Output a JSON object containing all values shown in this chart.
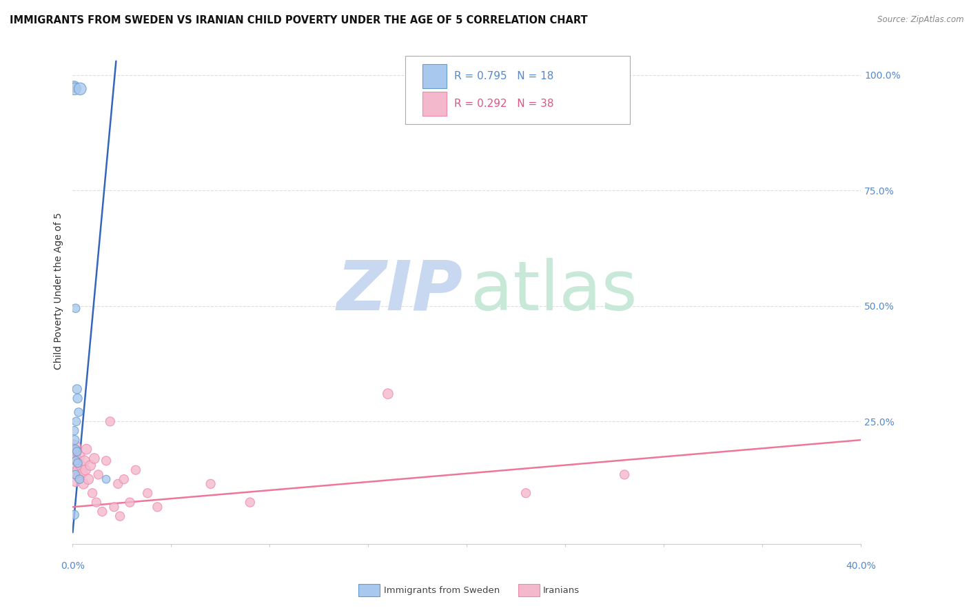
{
  "title": "IMMIGRANTS FROM SWEDEN VS IRANIAN CHILD POVERTY UNDER THE AGE OF 5 CORRELATION CHART",
  "source": "Source: ZipAtlas.com",
  "ylabel": "Child Poverty Under the Age of 5",
  "ytick_labels": [
    "100.0%",
    "75.0%",
    "50.0%",
    "25.0%"
  ],
  "ytick_values": [
    1.0,
    0.75,
    0.5,
    0.25
  ],
  "xmin": 0.0,
  "xmax": 0.4,
  "ymin": -0.015,
  "ymax": 1.08,
  "sweden_x": [
    0.0008,
    0.001,
    0.0038,
    0.0015,
    0.0022,
    0.0025,
    0.003,
    0.0018,
    0.0008,
    0.001,
    0.0014,
    0.0022,
    0.0016,
    0.0026,
    0.0014,
    0.0035,
    0.0008,
    0.017
  ],
  "sweden_y": [
    0.975,
    0.97,
    0.97,
    0.495,
    0.32,
    0.3,
    0.27,
    0.25,
    0.23,
    0.21,
    0.19,
    0.185,
    0.165,
    0.16,
    0.135,
    0.125,
    0.048,
    0.125
  ],
  "sweden_sizes": [
    130,
    160,
    160,
    80,
    90,
    90,
    80,
    80,
    80,
    90,
    80,
    80,
    80,
    80,
    80,
    80,
    90,
    70
  ],
  "iran_x": [
    0.0005,
    0.0008,
    0.001,
    0.0012,
    0.0015,
    0.0018,
    0.0022,
    0.0025,
    0.003,
    0.0035,
    0.004,
    0.005,
    0.0055,
    0.006,
    0.0065,
    0.007,
    0.008,
    0.009,
    0.01,
    0.011,
    0.012,
    0.013,
    0.015,
    0.017,
    0.019,
    0.021,
    0.023,
    0.024,
    0.026,
    0.029,
    0.032,
    0.038,
    0.043,
    0.07,
    0.09,
    0.16,
    0.23,
    0.28
  ],
  "iran_y": [
    0.195,
    0.175,
    0.16,
    0.14,
    0.12,
    0.185,
    0.165,
    0.145,
    0.13,
    0.175,
    0.155,
    0.138,
    0.115,
    0.165,
    0.145,
    0.19,
    0.125,
    0.155,
    0.095,
    0.17,
    0.075,
    0.135,
    0.055,
    0.165,
    0.25,
    0.065,
    0.115,
    0.045,
    0.125,
    0.075,
    0.145,
    0.095,
    0.065,
    0.115,
    0.075,
    0.31,
    0.095,
    0.135
  ],
  "iran_sizes": [
    220,
    130,
    130,
    110,
    110,
    110,
    110,
    110,
    110,
    110,
    110,
    110,
    110,
    110,
    110,
    110,
    110,
    110,
    90,
    110,
    90,
    90,
    90,
    90,
    90,
    90,
    90,
    90,
    90,
    90,
    90,
    90,
    90,
    90,
    90,
    110,
    90,
    90
  ],
  "sweden_color": "#a8c8ee",
  "iran_color": "#f4b8cc",
  "sweden_edge": "#6699cc",
  "iran_edge": "#ee88aa",
  "trend_sweden_x0": 0.0,
  "trend_sweden_x1": 0.022,
  "trend_sweden_y0": 0.01,
  "trend_sweden_y1": 1.03,
  "trend_iran_x0": 0.0,
  "trend_iran_x1": 0.4,
  "trend_iran_y0": 0.065,
  "trend_iran_y1": 0.21,
  "grid_color": "#dddddd",
  "background_color": "#ffffff",
  "title_fontsize": 10.5,
  "axis_fontsize": 10,
  "ylabel_fontsize": 10,
  "legend_R1": "R = 0.795",
  "legend_N1": "N = 18",
  "legend_R2": "R = 0.292",
  "legend_N2": "N = 38",
  "watermark_zip_color": "#c8d8f0",
  "watermark_atlas_color": "#c8e8d8"
}
